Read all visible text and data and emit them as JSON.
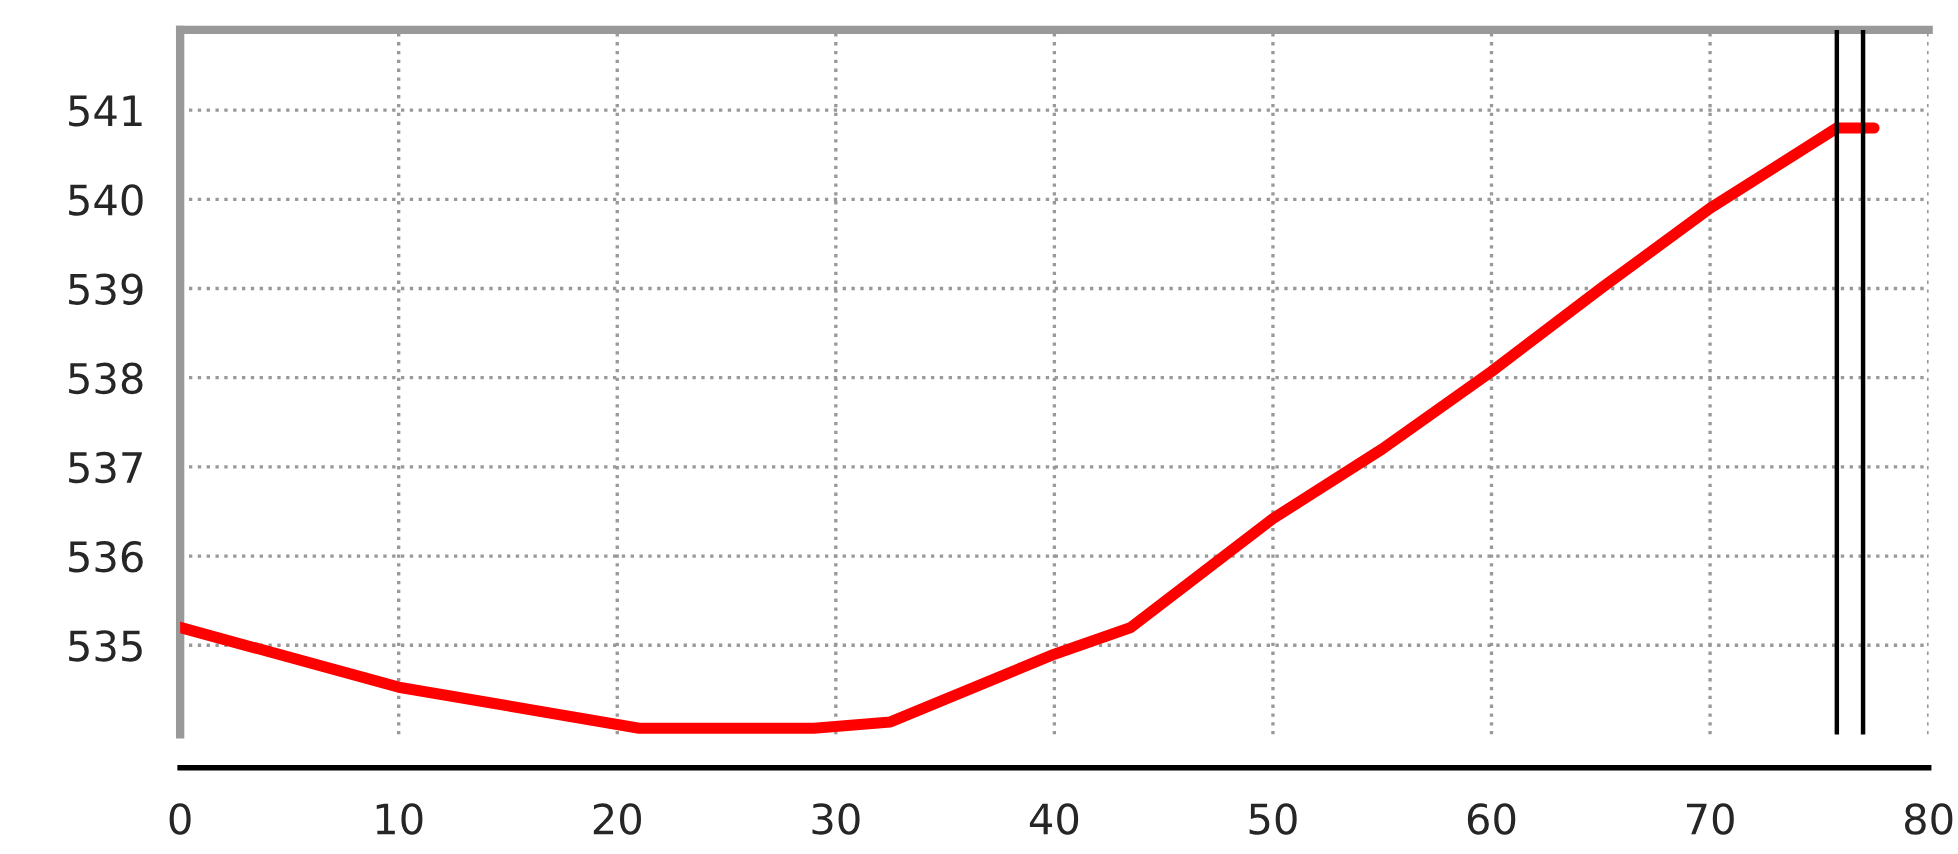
{
  "chart_data": {
    "type": "line",
    "x": [
      0,
      10,
      21,
      29,
      32.5,
      40,
      43.5,
      50,
      55,
      60,
      65,
      70,
      75.8,
      77.5
    ],
    "series": [
      {
        "color": "#ff0000",
        "values": [
          535.2,
          534.53,
          534.07,
          534.07,
          534.14,
          534.9,
          535.2,
          536.42,
          537.2,
          538.07,
          539.0,
          539.9,
          540.8,
          540.8
        ]
      }
    ],
    "xlim": [
      0,
      80
    ],
    "xticks": [
      0,
      10,
      20,
      30,
      40,
      50,
      60,
      70,
      80
    ],
    "ylim": [
      534,
      541.9
    ],
    "yticks": [
      535,
      536,
      537,
      538,
      539,
      540,
      541
    ],
    "grid": true,
    "line_style": "solid",
    "marker": "none",
    "ref_lines": [
      {
        "axis": "x",
        "value": 75.8,
        "label": null,
        "color": "#000000"
      },
      {
        "axis": "x",
        "value": 77.0,
        "label": null,
        "color": "#000000"
      }
    ]
  }
}
